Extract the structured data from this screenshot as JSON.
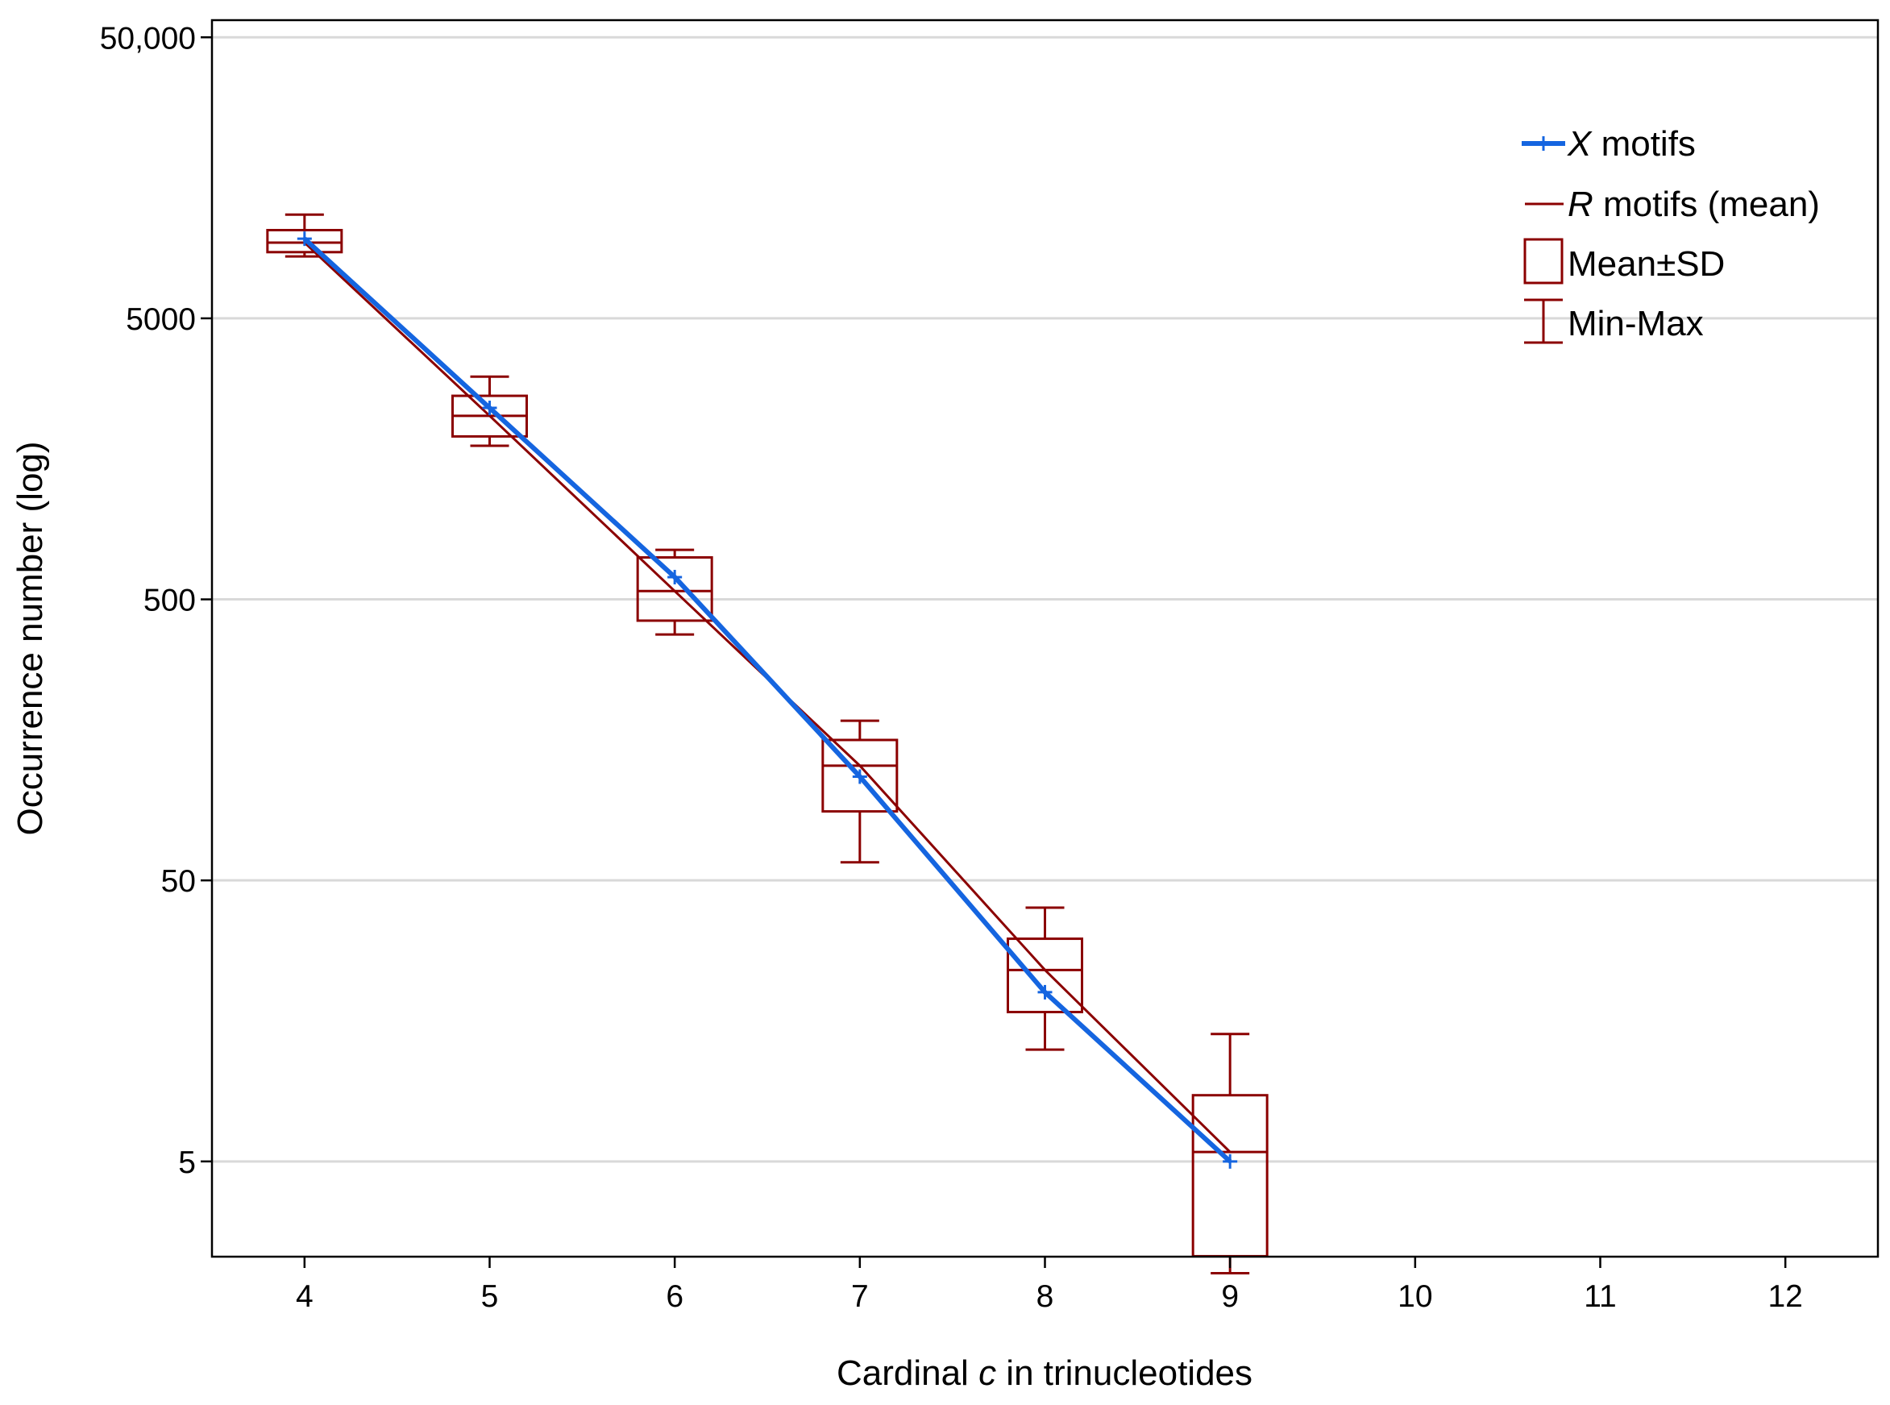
{
  "chart_data": {
    "type": "box",
    "title": "",
    "xlabel_pre": "Cardinal ",
    "xlabel_var": "c",
    "xlabel_post": " in trinucleotides",
    "ylabel": "Occurrence number (log)",
    "xlim": [
      3.5,
      12.5
    ],
    "ylim_log10": [
      0.36,
      4.76
    ],
    "yscale": "log",
    "x_ticks": [
      4,
      5,
      6,
      7,
      8,
      9,
      10,
      11,
      12
    ],
    "x_tick_labels": [
      "4",
      "5",
      "6",
      "7",
      "8",
      "9",
      "10",
      "11",
      "12"
    ],
    "y_ticks": [
      5,
      50,
      500,
      5000,
      50000
    ],
    "y_tick_labels": [
      "5",
      "50",
      "500",
      "5000",
      "50,000"
    ],
    "grid": "horizontal",
    "legend_position": "top-right",
    "colors": {
      "x_motifs": "#1565e0",
      "r_motifs": "#8b0000",
      "grid": "#d9d9d9",
      "axis": "#000000"
    },
    "legend": [
      {
        "key": "x",
        "var": "X",
        "label": " motifs"
      },
      {
        "key": "r",
        "var": "R",
        "label": " motifs (mean)"
      },
      {
        "key": "sd",
        "var": "",
        "label": "Mean±SD"
      },
      {
        "key": "mm",
        "var": "",
        "label": "Min-Max"
      }
    ],
    "x_motifs": {
      "name": "X motifs",
      "x": [
        4,
        5,
        6,
        7,
        8,
        9
      ],
      "values": [
        9600,
        2400,
        600,
        117,
        20,
        5
      ]
    },
    "r_motifs": {
      "name": "R motifs (mean)",
      "x": [
        4,
        5,
        6,
        7,
        8,
        9
      ],
      "mean": [
        9300,
        2250,
        535,
        128,
        24,
        5.4
      ],
      "mean_minus_sd": [
        8600,
        1900,
        420,
        88,
        17,
        2.3
      ],
      "mean_plus_sd": [
        10300,
        2650,
        705,
        158,
        31,
        8.6
      ],
      "min": [
        8300,
        1760,
        375,
        58,
        12.5,
        2.0
      ],
      "max": [
        11700,
        3100,
        750,
        185,
        40,
        14.2
      ]
    }
  }
}
